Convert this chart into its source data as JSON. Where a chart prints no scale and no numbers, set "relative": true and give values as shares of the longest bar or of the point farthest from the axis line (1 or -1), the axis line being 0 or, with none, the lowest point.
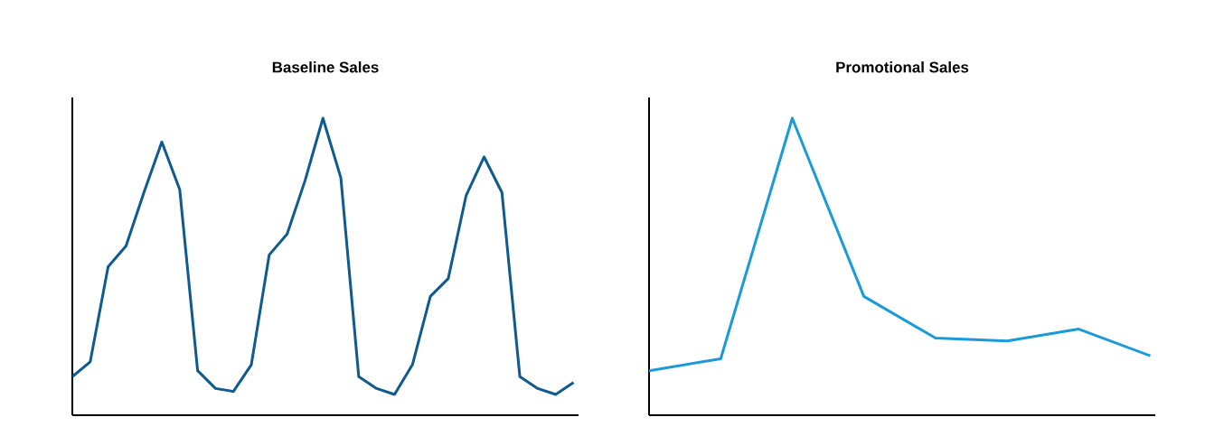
{
  "chart_data": [
    {
      "type": "line",
      "title": "Baseline Sales",
      "relative": true,
      "color": "#0f5a8e",
      "categories": [
        null,
        null,
        null,
        null,
        null,
        null,
        null,
        null,
        null,
        null,
        null,
        null,
        null,
        null,
        null,
        null,
        null,
        null,
        null,
        null,
        null,
        null,
        null,
        null,
        null,
        null,
        null,
        null,
        null
      ],
      "values": [
        0.13,
        0.18,
        0.5,
        0.57,
        0.75,
        0.92,
        0.76,
        0.15,
        0.09,
        0.08,
        0.17,
        0.54,
        0.61,
        0.79,
        1,
        0.8,
        0.13,
        0.09,
        0.07,
        0.17,
        0.4,
        0.46,
        0.74,
        0.87,
        0.75,
        0.13,
        0.09,
        0.07,
        0.11
      ]
    },
    {
      "type": "line",
      "title": "Promotional Sales",
      "relative": true,
      "color": "#1a9ad8",
      "categories": [
        null,
        null,
        null,
        null,
        null,
        null,
        null,
        null
      ],
      "values": [
        0.15,
        0.19,
        1,
        0.4,
        0.26,
        0.25,
        0.29,
        0.2
      ]
    }
  ]
}
